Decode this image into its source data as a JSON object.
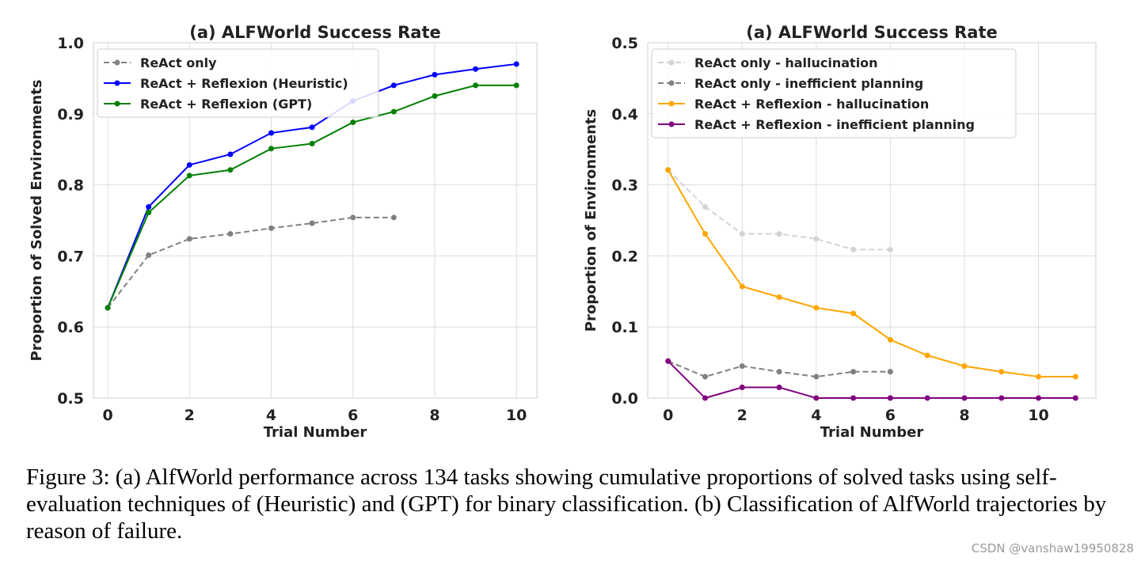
{
  "chart_data": [
    {
      "type": "line",
      "title": "(a) ALFWorld Success Rate",
      "xlabel": "Trial Number",
      "ylabel": "Proportion of Solved Environments",
      "xlim": [
        -0.35,
        10.5
      ],
      "ylim": [
        0.5,
        1.0
      ],
      "xticks": [
        0,
        2,
        4,
        6,
        8,
        10
      ],
      "yticks": [
        0.5,
        0.6,
        0.7,
        0.8,
        0.9,
        1.0
      ],
      "ytick_labels": [
        "0.5",
        "0.6",
        "0.7",
        "0.8",
        "0.9",
        "1.0"
      ],
      "grid": true,
      "legend": "top-left",
      "series": [
        {
          "name": "ReAct only",
          "color": "#808080",
          "dashed": true,
          "x": [
            0,
            1,
            2,
            3,
            4,
            5,
            6,
            7
          ],
          "y": [
            0.627,
            0.701,
            0.724,
            0.731,
            0.739,
            0.746,
            0.754,
            0.754
          ]
        },
        {
          "name": "ReAct + Reflexion (Heuristic)",
          "color": "#0000ff",
          "dashed": false,
          "x": [
            0,
            1,
            2,
            3,
            4,
            5,
            6,
            7,
            8,
            9,
            10
          ],
          "y": [
            0.627,
            0.769,
            0.828,
            0.843,
            0.873,
            0.881,
            0.918,
            0.94,
            0.955,
            0.963,
            0.97
          ]
        },
        {
          "name": "ReAct + Reflexion (GPT)",
          "color": "#008000",
          "dashed": false,
          "x": [
            0,
            1,
            2,
            3,
            4,
            5,
            6,
            7,
            8,
            9,
            10
          ],
          "y": [
            0.627,
            0.761,
            0.813,
            0.821,
            0.851,
            0.858,
            0.888,
            0.903,
            0.925,
            0.94,
            0.94
          ]
        }
      ]
    },
    {
      "type": "line",
      "title": "(a) ALFWorld Success Rate",
      "xlabel": "Trial Number",
      "ylabel": "Proportion of Environments",
      "xlim": [
        -0.55,
        11.55
      ],
      "ylim": [
        0.0,
        0.5
      ],
      "xticks": [
        0,
        2,
        4,
        6,
        8,
        10
      ],
      "yticks": [
        0.0,
        0.1,
        0.2,
        0.3,
        0.4,
        0.5
      ],
      "ytick_labels": [
        "0.0",
        "0.1",
        "0.2",
        "0.3",
        "0.4",
        "0.5"
      ],
      "grid": true,
      "legend": "top-left",
      "series": [
        {
          "name": "ReAct only - hallucination",
          "color": "#d3d3d3",
          "dashed": true,
          "x": [
            0,
            1,
            2,
            3,
            4,
            5,
            6
          ],
          "y": [
            0.321,
            0.269,
            0.231,
            0.231,
            0.224,
            0.209,
            0.209
          ]
        },
        {
          "name": "ReAct only - inefficient planning",
          "color": "#808080",
          "dashed": true,
          "x": [
            0,
            1,
            2,
            3,
            4,
            5,
            6
          ],
          "y": [
            0.052,
            0.03,
            0.045,
            0.037,
            0.03,
            0.037,
            0.037
          ]
        },
        {
          "name": "ReAct + Reflexion - hallucination",
          "color": "#ffa500",
          "dashed": false,
          "x": [
            0,
            1,
            2,
            3,
            4,
            5,
            6,
            7,
            8,
            9,
            10,
            11
          ],
          "y": [
            0.321,
            0.231,
            0.157,
            0.142,
            0.127,
            0.119,
            0.082,
            0.06,
            0.045,
            0.037,
            0.03,
            0.03
          ]
        },
        {
          "name": "ReAct + Reflexion - inefficient planning",
          "color": "#800080",
          "dashed": false,
          "x": [
            0,
            1,
            2,
            3,
            4,
            5,
            6,
            7,
            8,
            9,
            10,
            11
          ],
          "y": [
            0.052,
            0.0,
            0.015,
            0.015,
            0.0,
            0.0,
            0.0,
            0.0,
            0.0,
            0.0,
            0.0,
            0.0
          ]
        }
      ]
    }
  ],
  "caption": "Figure 3: (a) AlfWorld performance across 134 tasks showing cumulative proportions of solved tasks using self-evaluation techniques of (Heuristic) and (GPT) for binary classification. (b) Classification of AlfWorld trajectories by reason of failure.",
  "watermark": "CSDN @vanshaw19950828"
}
